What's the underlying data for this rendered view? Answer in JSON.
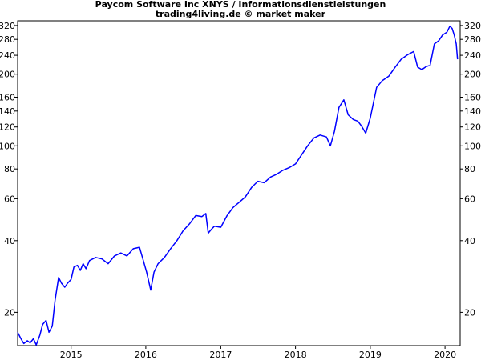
{
  "chart_data": {
    "type": "line",
    "title": "Paycom Software Inc XNYS / Informationsdienstleistungen",
    "subtitle": "trading4living.de © market maker",
    "xlabel": "",
    "ylabel": "",
    "yscale": "log",
    "ylim": [
      14.5,
      335
    ],
    "xlim": [
      "2014-04-15",
      "2020-03-15"
    ],
    "grid": false,
    "x_ticks": [
      {
        "date": "2015-01-01",
        "label": "2015"
      },
      {
        "date": "2016-01-01",
        "label": "2016"
      },
      {
        "date": "2017-01-01",
        "label": "2017"
      },
      {
        "date": "2018-01-01",
        "label": "2018"
      },
      {
        "date": "2019-01-01",
        "label": "2019"
      },
      {
        "date": "2020-01-01",
        "label": "2020"
      }
    ],
    "y_ticks": [
      320,
      280,
      240,
      200,
      160,
      140,
      120,
      100,
      80,
      60,
      40,
      20
    ],
    "series": [
      {
        "color": "#0000ff",
        "points": [
          [
            "2014-04-15",
            16.5
          ],
          [
            "2014-05-01",
            15.5
          ],
          [
            "2014-05-15",
            14.8
          ],
          [
            "2014-06-01",
            15.2
          ],
          [
            "2014-06-15",
            14.9
          ],
          [
            "2014-07-01",
            15.5
          ],
          [
            "2014-07-15",
            14.6
          ],
          [
            "2014-08-01",
            16.0
          ],
          [
            "2014-08-15",
            17.8
          ],
          [
            "2014-09-01",
            18.5
          ],
          [
            "2014-09-15",
            16.5
          ],
          [
            "2014-10-01",
            17.5
          ],
          [
            "2014-10-15",
            22.5
          ],
          [
            "2014-11-01",
            28.0
          ],
          [
            "2014-11-15",
            26.5
          ],
          [
            "2014-12-01",
            25.5
          ],
          [
            "2014-12-15",
            26.5
          ],
          [
            "2015-01-01",
            27.5
          ],
          [
            "2015-01-15",
            31.0
          ],
          [
            "2015-02-01",
            31.5
          ],
          [
            "2015-02-15",
            30.0
          ],
          [
            "2015-03-01",
            32.0
          ],
          [
            "2015-03-15",
            30.5
          ],
          [
            "2015-04-01",
            33.0
          ],
          [
            "2015-05-01",
            34.0
          ],
          [
            "2015-06-01",
            33.5
          ],
          [
            "2015-07-01",
            32.0
          ],
          [
            "2015-08-01",
            34.5
          ],
          [
            "2015-09-01",
            35.5
          ],
          [
            "2015-10-01",
            34.5
          ],
          [
            "2015-11-01",
            37.0
          ],
          [
            "2015-12-01",
            37.5
          ],
          [
            "2015-12-20",
            33.0
          ],
          [
            "2016-01-05",
            29.5
          ],
          [
            "2016-01-15",
            27.0
          ],
          [
            "2016-01-25",
            24.8
          ],
          [
            "2016-02-10",
            29.5
          ],
          [
            "2016-03-01",
            32.0
          ],
          [
            "2016-04-01",
            34.0
          ],
          [
            "2016-05-01",
            37.0
          ],
          [
            "2016-06-01",
            40.0
          ],
          [
            "2016-07-01",
            44.0
          ],
          [
            "2016-08-01",
            47.0
          ],
          [
            "2016-09-01",
            51.0
          ],
          [
            "2016-10-01",
            50.5
          ],
          [
            "2016-10-20",
            52.0
          ],
          [
            "2016-11-01",
            43.0
          ],
          [
            "2016-11-15",
            44.5
          ],
          [
            "2016-12-01",
            46.0
          ],
          [
            "2017-01-01",
            45.5
          ],
          [
            "2017-02-01",
            51.0
          ],
          [
            "2017-03-01",
            55.0
          ],
          [
            "2017-04-01",
            58.0
          ],
          [
            "2017-05-01",
            61.0
          ],
          [
            "2017-06-01",
            67.0
          ],
          [
            "2017-07-01",
            71.0
          ],
          [
            "2017-08-01",
            70.0
          ],
          [
            "2017-09-01",
            74.0
          ],
          [
            "2017-10-01",
            76.0
          ],
          [
            "2017-11-01",
            79.0
          ],
          [
            "2017-12-01",
            81.0
          ],
          [
            "2018-01-01",
            84.0
          ],
          [
            "2018-02-01",
            92.0
          ],
          [
            "2018-03-01",
            100.0
          ],
          [
            "2018-04-01",
            108.0
          ],
          [
            "2018-05-01",
            111.0
          ],
          [
            "2018-06-01",
            109.0
          ],
          [
            "2018-06-20",
            100.0
          ],
          [
            "2018-07-10",
            115.0
          ],
          [
            "2018-08-01",
            145.0
          ],
          [
            "2018-08-25",
            156.0
          ],
          [
            "2018-09-15",
            135.0
          ],
          [
            "2018-10-10",
            129.0
          ],
          [
            "2018-11-01",
            127.0
          ],
          [
            "2018-11-20",
            121.0
          ],
          [
            "2018-12-10",
            113.0
          ],
          [
            "2019-01-01",
            131.0
          ],
          [
            "2019-02-01",
            176.0
          ],
          [
            "2019-03-01",
            188.0
          ],
          [
            "2019-04-01",
            196.0
          ],
          [
            "2019-05-01",
            213.0
          ],
          [
            "2019-06-01",
            231.0
          ],
          [
            "2019-07-01",
            241.0
          ],
          [
            "2019-08-01",
            249.0
          ],
          [
            "2019-08-20",
            214.0
          ],
          [
            "2019-09-10",
            209.0
          ],
          [
            "2019-10-01",
            215.0
          ],
          [
            "2019-10-20",
            218.0
          ],
          [
            "2019-11-10",
            268.0
          ],
          [
            "2019-12-01",
            276.0
          ],
          [
            "2019-12-20",
            292.0
          ],
          [
            "2020-01-10",
            300.0
          ],
          [
            "2020-01-25",
            318.0
          ],
          [
            "2020-02-05",
            311.0
          ],
          [
            "2020-02-15",
            292.0
          ],
          [
            "2020-02-25",
            268.0
          ],
          [
            "2020-03-02",
            231.0
          ]
        ]
      }
    ]
  }
}
